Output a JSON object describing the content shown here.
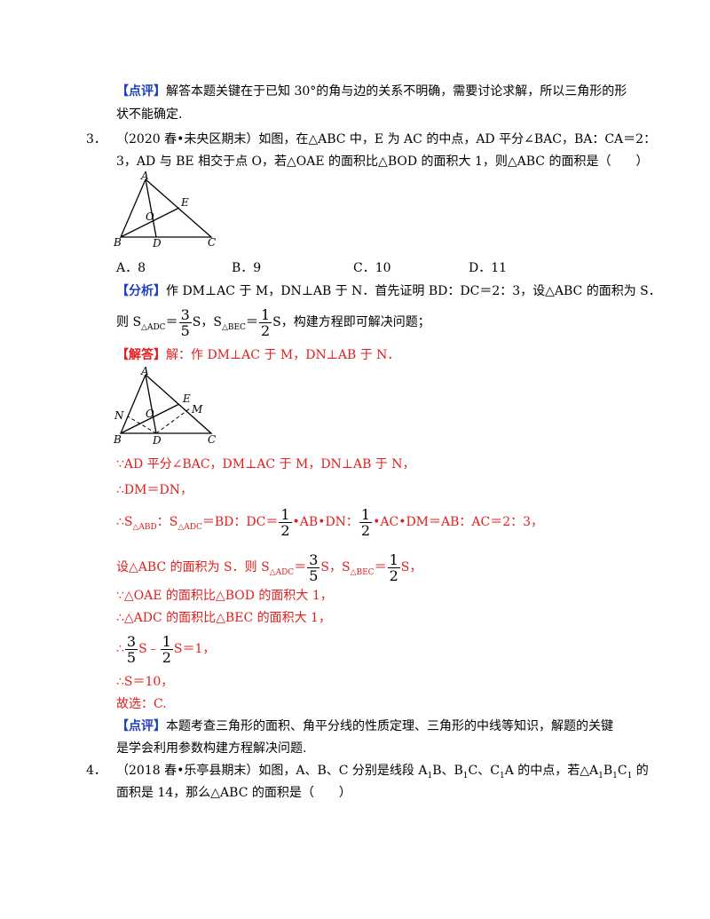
{
  "items": {
    "p_review_prev": {
      "tag": "【点评】",
      "line1": "解答本题关键在于已知 30°的角与边的关系不明确，需要讨论求解，所以三角形的形",
      "line2": "状不能确定."
    },
    "q3": {
      "number": "3．",
      "line1": "（2020 春•未央区期末）如图，在△ABC 中，E 为 AC 的中点，AD 平分∠BAC，BA：CA＝2：",
      "line2": "3，AD 与 BE 相交于点 O，若△OAE 的面积比△BOD 的面积大 1，则△ABC 的面积是（　　）",
      "figure_labels": [
        "A",
        "E",
        "O",
        "B",
        "D",
        "C"
      ],
      "options": [
        "A．8",
        "B．9",
        "C．10",
        "D．11"
      ]
    },
    "analysis": {
      "tag": "【分析】",
      "line1": "作 DM⊥AC 于 M，DN⊥AB 于 N．首先证明 BD：DC＝2：3，设△ABC 的面积为 S．",
      "line2_pre": "则 S",
      "line2_sub1": "△ADC",
      "line2_eq1": "＝",
      "frac1_n": "3",
      "frac1_d": "5",
      "line2_s1": "S，S",
      "line2_sub2": "△BEC",
      "line2_eq2": "＝",
      "frac2_n": "1",
      "frac2_d": "2",
      "line2_post": "S，构建方程即可解决问题；"
    },
    "solution": {
      "tag": "【解答】",
      "line1": "解：作 DM⊥AC 于 M，DN⊥AB 于 N．",
      "figure_labels": [
        "A",
        "E",
        "M",
        "N",
        "O",
        "B",
        "D",
        "C"
      ],
      "step1": "∵AD 平分∠BAC，DM⊥AC 于 M，DN⊥AB 于 N，",
      "step2": "∴DM＝DN，",
      "step3_a": "∴S",
      "step3_sub1": "△ABD",
      "step3_b": "：S",
      "step3_sub2": "△ADC",
      "step3_c": "＝BD：DC＝",
      "step3_f1n": "1",
      "step3_f1d": "2",
      "step3_d": "•AB•DN：",
      "step3_f2n": "1",
      "step3_f2d": "2",
      "step3_e": "•AC•DM＝AB：AC＝2：3，",
      "step4_a": "设△ABC 的面积为 S．则 S",
      "step4_sub1": "△ADC",
      "step4_b": "＝",
      "step4_f1n": "3",
      "step4_f1d": "5",
      "step4_c": "S，S",
      "step4_sub2": "△BEC",
      "step4_d": "＝",
      "step4_f2n": "1",
      "step4_f2d": "2",
      "step4_e": "S，",
      "step5": "∵△OAE 的面积比△BOD 的面积大 1，",
      "step6": "∴△ADC 的面积比△BEC 的面积大 1，",
      "step7_a": "∴",
      "step7_f1n": "3",
      "step7_f1d": "5",
      "step7_b": "S﹣",
      "step7_f2n": "1",
      "step7_f2d": "2",
      "step7_c": "S＝1，",
      "step8": "∴S＝10，",
      "step9": "故选：C."
    },
    "review": {
      "tag": "【点评】",
      "line1": "本题考查三角形的面积、角平分线的性质定理、三角形的中线等知识，解题的关键",
      "line2": "是学会利用参数构建方程解决问题."
    },
    "q4": {
      "number": "4．",
      "line1_a": "（2018 春•乐亭县期末）如图，A、B、C 分别是线段 A",
      "line1_s1": "1",
      "line1_b": "B、B",
      "line1_s2": "1",
      "line1_c": "C、C",
      "line1_s3": "1",
      "line1_d": "A 的中点，若△A",
      "line1_s4": "1",
      "line1_e": "B",
      "line1_s5": "1",
      "line1_f": "C",
      "line1_s6": "1",
      "line1_g": " 的",
      "line2": "面积是 14，那么△ABC 的面积是（　　）"
    }
  }
}
